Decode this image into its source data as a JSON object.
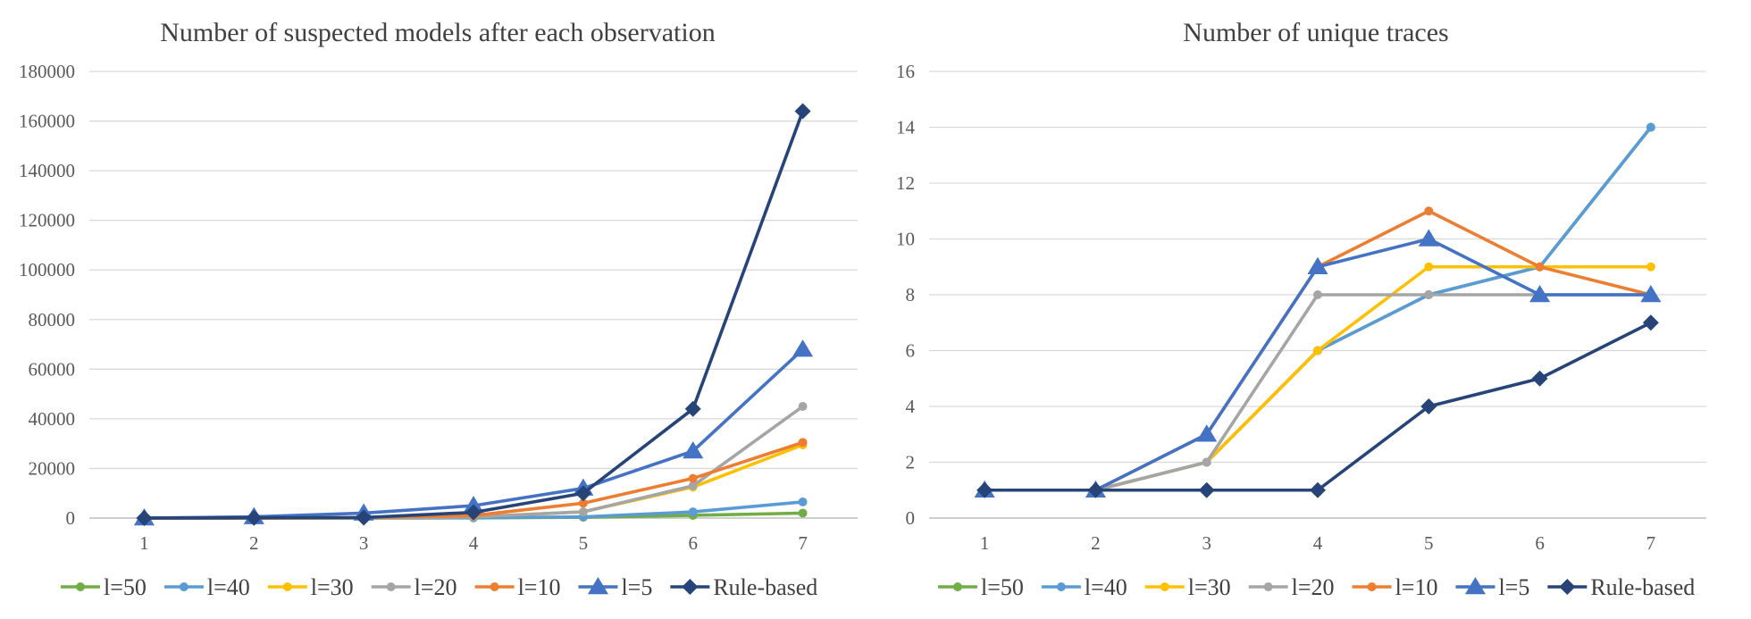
{
  "colors": {
    "l=50": "#70ad47",
    "l=40": "#5b9bd5",
    "l=30": "#ffc000",
    "l=20": "#a5a5a5",
    "l=10": "#ed7d31",
    "l=5": "#4472c4",
    "Rule-based": "#264478"
  },
  "chart_data": [
    {
      "type": "line",
      "title": "Number of suspected models after each observation",
      "xlabel": "",
      "ylabel": "",
      "categories": [
        "1",
        "2",
        "3",
        "4",
        "5",
        "6",
        "7"
      ],
      "ylim": [
        0,
        180000
      ],
      "yticks": [
        "0",
        "20000",
        "40000",
        "60000",
        "80000",
        "100000",
        "120000",
        "140000",
        "160000",
        "180000"
      ],
      "grid": true,
      "legend": "bottom",
      "series": [
        {
          "name": "l=50",
          "marker": "circle",
          "values": [
            2,
            4,
            15,
            80,
            300,
            1100,
            2000
          ]
        },
        {
          "name": "l=40",
          "marker": "circle",
          "values": [
            2,
            4,
            15,
            120,
            500,
            2500,
            6500
          ]
        },
        {
          "name": "l=30",
          "marker": "circle",
          "values": [
            2,
            10,
            100,
            500,
            2500,
            12500,
            29500
          ]
        },
        {
          "name": "l=20",
          "marker": "circle",
          "values": [
            2,
            10,
            100,
            500,
            2500,
            13000,
            45000
          ]
        },
        {
          "name": "l=10",
          "marker": "circle",
          "values": [
            2,
            20,
            200,
            1000,
            6000,
            16000,
            30500
          ]
        },
        {
          "name": "l=5",
          "marker": "triangle",
          "values": [
            2,
            500,
            2000,
            5000,
            12000,
            27000,
            68000
          ]
        },
        {
          "name": "Rule-based",
          "marker": "diamond",
          "values": [
            1,
            100,
            200,
            2300,
            10000,
            44000,
            164000
          ]
        }
      ]
    },
    {
      "type": "line",
      "title": "Number of unique traces",
      "xlabel": "",
      "ylabel": "",
      "categories": [
        "1",
        "2",
        "3",
        "4",
        "5",
        "6",
        "7"
      ],
      "ylim": [
        0,
        16
      ],
      "yticks": [
        "0",
        "2",
        "4",
        "6",
        "8",
        "10",
        "12",
        "14",
        "16"
      ],
      "grid": true,
      "legend": "bottom",
      "series": [
        {
          "name": "l=50",
          "marker": "circle",
          "values": [
            1,
            1,
            2,
            6,
            8,
            9,
            14
          ]
        },
        {
          "name": "l=40",
          "marker": "circle",
          "values": [
            1,
            1,
            2,
            6,
            8,
            9,
            14
          ]
        },
        {
          "name": "l=30",
          "marker": "circle",
          "values": [
            1,
            1,
            2,
            6,
            9,
            9,
            9
          ]
        },
        {
          "name": "l=20",
          "marker": "circle",
          "values": [
            1,
            1,
            2,
            8,
            8,
            8,
            8
          ]
        },
        {
          "name": "l=10",
          "marker": "circle",
          "values": [
            1,
            1,
            3,
            9,
            11,
            9,
            8
          ]
        },
        {
          "name": "l=5",
          "marker": "triangle",
          "values": [
            1,
            1,
            3,
            9,
            10,
            8,
            8
          ]
        },
        {
          "name": "Rule-based",
          "marker": "diamond",
          "values": [
            1,
            1,
            1,
            1,
            4,
            5,
            7
          ]
        }
      ]
    }
  ]
}
